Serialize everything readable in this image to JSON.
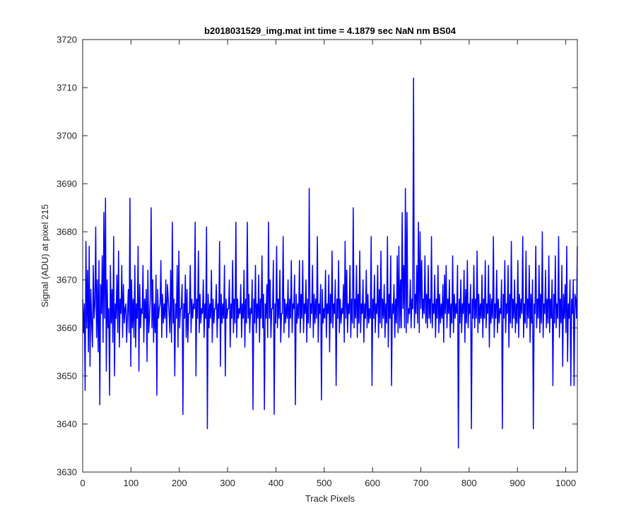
{
  "chart_data": {
    "type": "line",
    "title": "b2018031529_img.mat int time = 4.1879 sec  NaN nm BS04",
    "xlabel": "Track Pixels",
    "ylabel": "Signal (ADU) at pixel 215",
    "xlim": [
      0,
      1024
    ],
    "ylim": [
      3630,
      3720
    ],
    "xticks": [
      0,
      100,
      200,
      300,
      400,
      500,
      600,
      700,
      800,
      900,
      1000
    ],
    "yticks": [
      3630,
      3640,
      3650,
      3660,
      3670,
      3680,
      3690,
      3700,
      3710,
      3720
    ],
    "xtick_labels": [
      "0",
      "100",
      "200",
      "300",
      "400",
      "500",
      "600",
      "700",
      "800",
      "900",
      "1000"
    ],
    "ytick_labels": [
      "3630",
      "3640",
      "3650",
      "3660",
      "3670",
      "3680",
      "3690",
      "3700",
      "3710",
      "3720"
    ],
    "grid": false,
    "series_color": "#0000ff",
    "series": [
      {
        "values": [
          3666,
          3659,
          3665,
          3647,
          3678,
          3660,
          3672,
          3655,
          3677,
          3652,
          3668,
          3661,
          3656,
          3673,
          3662,
          3665,
          3681,
          3658,
          3670,
          3655,
          3674,
          3644,
          3669,
          3663,
          3675,
          3657,
          3684,
          3662,
          3687,
          3651,
          3670,
          3660,
          3664,
          3646,
          3673,
          3661,
          3668,
          3657,
          3679,
          3650,
          3665,
          3662,
          3671,
          3659,
          3676,
          3656,
          3666,
          3663,
          3673,
          3658,
          3669,
          3661,
          3664,
          3665,
          3657,
          3663,
          3668,
          3659,
          3687,
          3652,
          3670,
          3660,
          3666,
          3658,
          3673,
          3656,
          3665,
          3662,
          3677,
          3651,
          3669,
          3660,
          3664,
          3663,
          3673,
          3657,
          3666,
          3662,
          3668,
          3653,
          3672,
          3659,
          3662,
          3666,
          3685,
          3660,
          3670,
          3657,
          3665,
          3659,
          3671,
          3646,
          3668,
          3662,
          3664,
          3665,
          3674,
          3658,
          3667,
          3661,
          3665,
          3662,
          3670,
          3658,
          3669,
          3666,
          3663,
          3659,
          3672,
          3657,
          3682,
          3661,
          3666,
          3650,
          3665,
          3662,
          3673,
          3656,
          3676,
          3660,
          3664,
          3664,
          3669,
          3642,
          3665,
          3662,
          3671,
          3658,
          3668,
          3657,
          3663,
          3663,
          3673,
          3659,
          3666,
          3662,
          3665,
          3664,
          3682,
          3650,
          3666,
          3662,
          3676,
          3659,
          3667,
          3661,
          3664,
          3663,
          3670,
          3658,
          3665,
          3662,
          3681,
          3639,
          3667,
          3660,
          3665,
          3662,
          3672,
          3657,
          3666,
          3661,
          3664,
          3664,
          3669,
          3658,
          3665,
          3662,
          3678,
          3652,
          3667,
          3661,
          3665,
          3662,
          3673,
          3650,
          3666,
          3662,
          3664,
          3664,
          3670,
          3656,
          3665,
          3662,
          3674,
          3659,
          3666,
          3661,
          3682,
          3658,
          3666,
          3662,
          3664,
          3663,
          3669,
          3658,
          3665,
          3662,
          3672,
          3656,
          3666,
          3661,
          3682,
          3662,
          3667,
          3659,
          3664,
          3663,
          3670,
          3643,
          3666,
          3661,
          3673,
          3659,
          3665,
          3662,
          3671,
          3657,
          3666,
          3662,
          3675,
          3660,
          3667,
          3643,
          3665,
          3662,
          3669,
          3658,
          3682,
          3662,
          3670,
          3658,
          3664,
          3664,
          3674,
          3642,
          3665,
          3661,
          3677,
          3660,
          3666,
          3662,
          3672,
          3657,
          3663,
          3663,
          3679,
          3659,
          3666,
          3661,
          3665,
          3662,
          3670,
          3658,
          3666,
          3662,
          3674,
          3659,
          3665,
          3664,
          3671,
          3644,
          3667,
          3661,
          3665,
          3662,
          3674,
          3659,
          3667,
          3662,
          3674,
          3659,
          3665,
          3663,
          3670,
          3657,
          3666,
          3661,
          3689,
          3660,
          3665,
          3663,
          3673,
          3658,
          3667,
          3661,
          3666,
          3662,
          3679,
          3657,
          3665,
          3663,
          3669,
          3645,
          3668,
          3661,
          3664,
          3662,
          3672,
          3658,
          3665,
          3663,
          3671,
          3655,
          3667,
          3661,
          3676,
          3660,
          3665,
          3663,
          3670,
          3648,
          3666,
          3662,
          3674,
          3659,
          3666,
          3661,
          3664,
          3663,
          3669,
          3657,
          3678,
          3662,
          3672,
          3659,
          3665,
          3663,
          3673,
          3658,
          3666,
          3661,
          3685,
          3660,
          3666,
          3662,
          3673,
          3658,
          3667,
          3661,
          3676,
          3659,
          3665,
          3663,
          3670,
          3657,
          3665,
          3662,
          3672,
          3660,
          3667,
          3661,
          3664,
          3662,
          3679,
          3648,
          3666,
          3662,
          3671,
          3659,
          3665,
          3663,
          3673,
          3658,
          3668,
          3661,
          3676,
          3660,
          3666,
          3662,
          3669,
          3658,
          3665,
          3661,
          3679,
          3656,
          3667,
          3662,
          3675,
          3648,
          3665,
          3663,
          3669,
          3658,
          3666,
          3661,
          3675,
          3659,
          3677,
          3660,
          3670,
          3660,
          3684,
          3664,
          3673,
          3660,
          3689,
          3659,
          3684,
          3661,
          3664,
          3663,
          3670,
          3660,
          3666,
          3664,
          3712,
          3660,
          3667,
          3663,
          3673,
          3661,
          3682,
          3659,
          3680,
          3664,
          3674,
          3662,
          3666,
          3663,
          3675,
          3661,
          3667,
          3660,
          3673,
          3662,
          3666,
          3661,
          3679,
          3660,
          3665,
          3663,
          3671,
          3658,
          3666,
          3662,
          3673,
          3659,
          3667,
          3661,
          3665,
          3662,
          3669,
          3657,
          3671,
          3663,
          3673,
          3660,
          3666,
          3663,
          3670,
          3658,
          3665,
          3661,
          3675,
          3659,
          3667,
          3662,
          3665,
          3663,
          3673,
          3635,
          3666,
          3661,
          3670,
          3659,
          3665,
          3663,
          3672,
          3657,
          3668,
          3661,
          3674,
          3660,
          3665,
          3663,
          3669,
          3639,
          3666,
          3662,
          3673,
          3660,
          3666,
          3662,
          3676,
          3659,
          3667,
          3661,
          3665,
          3662,
          3671,
          3658,
          3666,
          3662,
          3674,
          3660,
          3665,
          3663,
          3673,
          3656,
          3667,
          3661,
          3666,
          3662,
          3679,
          3658,
          3665,
          3662,
          3672,
          3659,
          3666,
          3661,
          3664,
          3663,
          3670,
          3639,
          3667,
          3662,
          3674,
          3659,
          3665,
          3663,
          3673,
          3656,
          3667,
          3661,
          3678,
          3660,
          3666,
          3662,
          3670,
          3659,
          3665,
          3661,
          3674,
          3658,
          3667,
          3662,
          3666,
          3663,
          3679,
          3658,
          3665,
          3661,
          3676,
          3660,
          3666,
          3662,
          3673,
          3657,
          3667,
          3661,
          3670,
          3639,
          3665,
          3663,
          3677,
          3660,
          3666,
          3662,
          3673,
          3659,
          3667,
          3661,
          3680,
          3658,
          3665,
          3663,
          3672,
          3660,
          3666,
          3661,
          3675,
          3659,
          3666,
          3662,
          3670,
          3648,
          3667,
          3661,
          3675,
          3660,
          3665,
          3662,
          3679,
          3658,
          3666,
          3661,
          3673,
          3652,
          3667,
          3662,
          3669,
          3659,
          3677,
          3653,
          3665,
          3662,
          3670,
          3648,
          3666,
          3663,
          3670,
          3648,
          3667,
          3666,
          3662,
          3677
        ]
      }
    ]
  }
}
